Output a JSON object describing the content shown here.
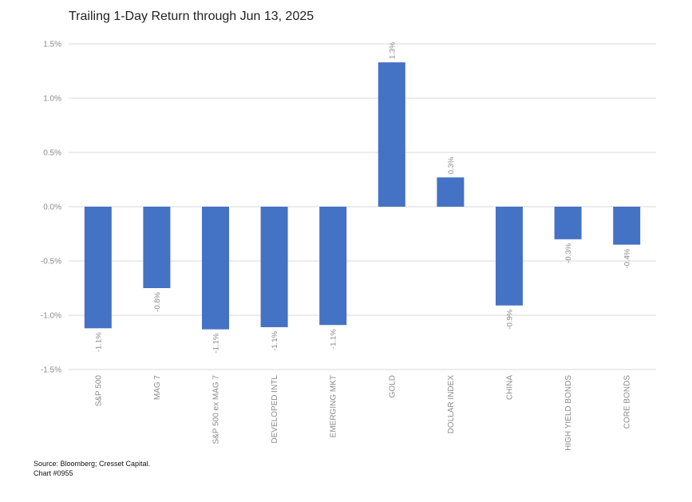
{
  "title": "Trailing 1-Day Return through Jun 13, 2025",
  "source": "Source: Bloomberg; Cresset Capital.",
  "chart_number": "Chart #0955",
  "chart_data": {
    "type": "bar",
    "title": "Trailing 1-Day Return through Jun 13, 2025",
    "categories": [
      "S&P 500",
      "MAG 7",
      "S&P 500 ex MAG 7",
      "DEVELOPED INTL",
      "EMERGING MKT",
      "GOLD",
      "DOLLAR INDEX",
      "CHINA",
      "HIGH YIELD BONDS",
      "CORE BONDS"
    ],
    "values": [
      -1.12,
      -0.75,
      -1.13,
      -1.11,
      -1.09,
      1.33,
      0.27,
      -0.91,
      -0.3,
      -0.35
    ],
    "data_labels": [
      "-1.1%",
      "-0.8%",
      "-1.1%",
      "-1.1%",
      "-1.1%",
      "1.3%",
      "0.3%",
      "-0.9%",
      "-0.3%",
      "-0.4%"
    ],
    "ylim": [
      -1.5,
      1.5
    ],
    "yticks": [
      1.5,
      1.0,
      0.5,
      0.0,
      -0.5,
      -1.0,
      -1.5
    ],
    "ytick_labels": [
      "1.5%",
      "1.0%",
      "0.5%",
      "0.0%",
      "-0.5%",
      "-1.0%",
      "-1.5%"
    ],
    "xlabel": "",
    "ylabel": "",
    "grid": true,
    "legend": "none",
    "bar_color": "#4472C4",
    "grid_color": "#d9d9d9"
  }
}
